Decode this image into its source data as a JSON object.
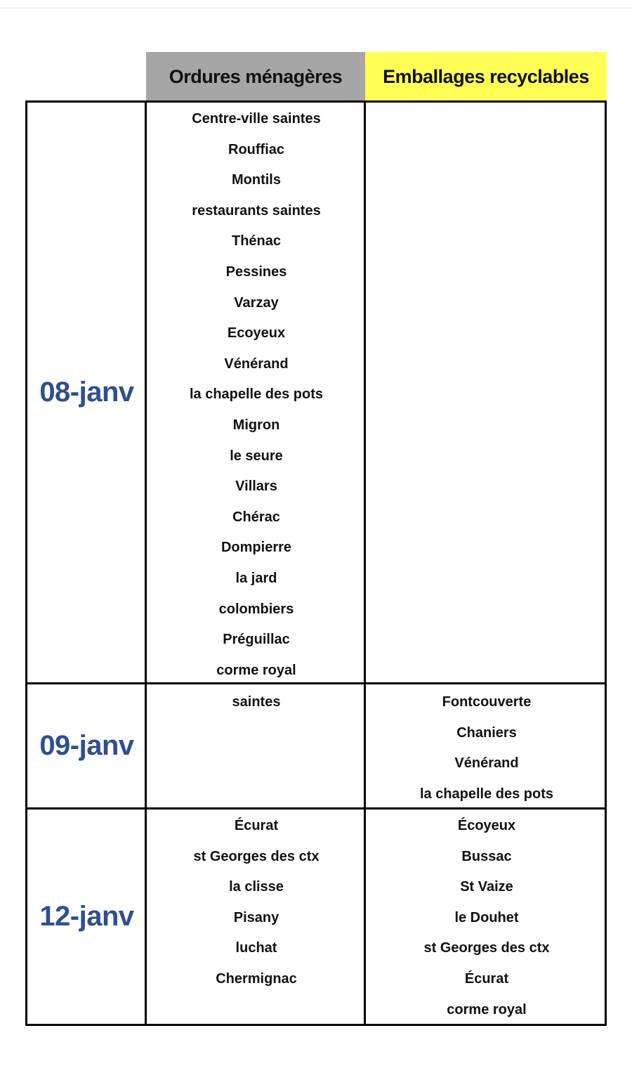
{
  "headers": {
    "col1": "",
    "col2": "Ordures ménagères",
    "col3": "Emballages recyclables"
  },
  "colors": {
    "header_om": "#a6a6a6",
    "header_er": "#ffff55",
    "date_text": "#2f4f8f"
  },
  "rows": [
    {
      "date": "08-janv",
      "ordures": [
        "Centre-ville saintes",
        "Rouffiac",
        "Montils",
        "restaurants saintes",
        "Thénac",
        "Pessines",
        "Varzay",
        "Ecoyeux",
        "Vénérand",
        "la chapelle des pots",
        "Migron",
        "le seure",
        "Villars",
        "Chérac",
        "Dompierre",
        "la jard",
        "colombiers",
        "Préguillac",
        "corme royal"
      ],
      "emballages": []
    },
    {
      "date": "09-janv",
      "ordures": [
        "saintes"
      ],
      "emballages": [
        "Fontcouverte",
        "Chaniers",
        "Vénérand",
        "la chapelle des pots"
      ]
    },
    {
      "date": "12-janv",
      "ordures": [
        "Écurat",
        "st Georges des ctx",
        "la clisse",
        "Pisany",
        "luchat",
        "Chermignac"
      ],
      "emballages": [
        "Écoyeux",
        "Bussac",
        "St Vaize",
        "le Douhet",
        "st Georges des ctx",
        "Écurat",
        "corme royal"
      ]
    }
  ]
}
